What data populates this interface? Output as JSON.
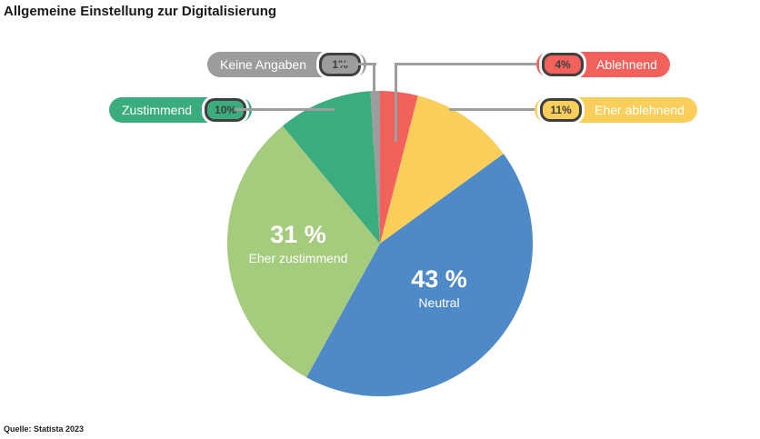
{
  "title": "Allgemeine Einstellung zur Digitalisierung",
  "source": "Quelle: Statista 2023",
  "colors": {
    "ablehnend": "#f2615c",
    "eher_ablehnend": "#f9ce5b",
    "neutral": "#4e89c8",
    "eher_zustimmend": "#a5cb7d",
    "zustimmend": "#3bac7d",
    "keine_angaben": "#9c9c9c",
    "leader_line": "#9e9e9e",
    "value_text": "#3f3f3f"
  },
  "chart_data": {
    "type": "pie",
    "title": "Allgemeine Einstellung zur Digitalisierung",
    "start_angle_deg": -90,
    "direction": "clockwise",
    "slices": [
      {
        "label": "Ablehnend",
        "value": 4,
        "color": "#f2615c"
      },
      {
        "label": "Eher ablehnend",
        "value": 11,
        "color": "#f9ce5b"
      },
      {
        "label": "Neutral",
        "value": 43,
        "color": "#4e89c8"
      },
      {
        "label": "Eher zustimmend",
        "value": 31,
        "color": "#a5cb7d"
      },
      {
        "label": "Zustimmend",
        "value": 10,
        "color": "#3bac7d"
      },
      {
        "label": "Keine Angaben",
        "value": 1,
        "color": "#9c9c9c"
      }
    ],
    "legend_position": "callout-pills",
    "grid": false
  },
  "inside_labels": {
    "neutral": {
      "pct": "43 %",
      "label": "Neutral"
    },
    "eher_zustimmend": {
      "pct": "31 %",
      "label": "Eher zustimmend"
    }
  },
  "callouts": {
    "keine_angaben": {
      "label": "Keine Angaben",
      "value": "1%"
    },
    "zustimmend": {
      "label": "Zustimmend",
      "value": "10%"
    },
    "ablehnend": {
      "label": "Ablehnend",
      "value": "4%"
    },
    "eher_ablehnend": {
      "label": "Eher ablehnend",
      "value": "11%"
    }
  }
}
